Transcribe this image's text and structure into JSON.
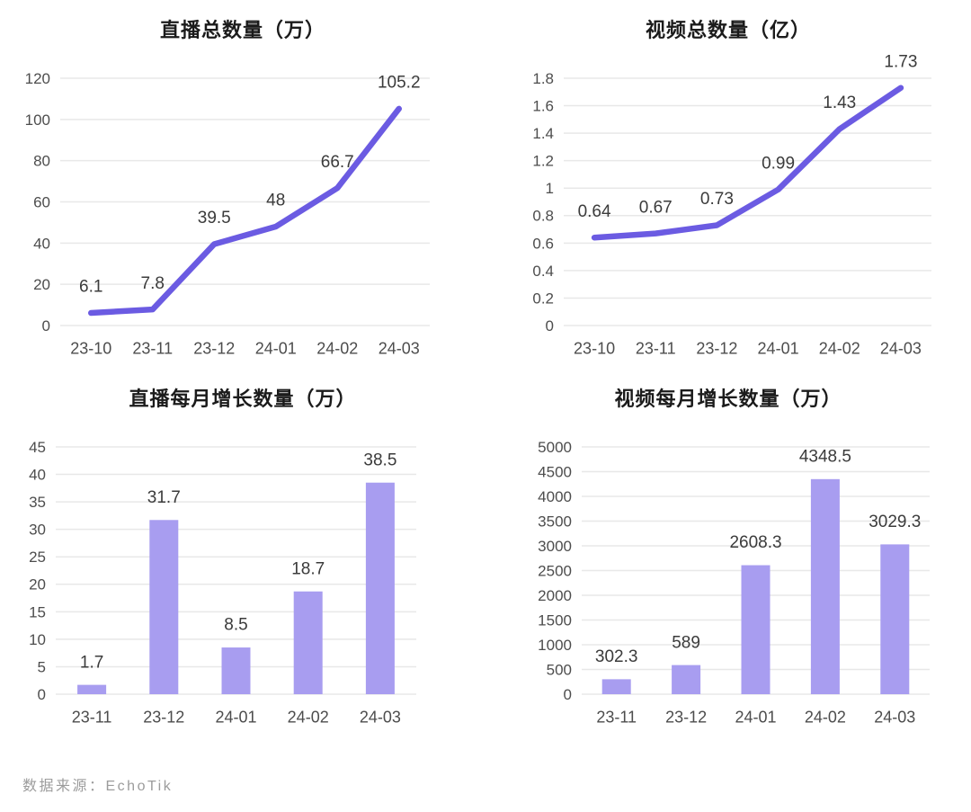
{
  "page": {
    "source_note": "数据来源：EchoTik"
  },
  "colors": {
    "line": "#6B5BE2",
    "bar": "#A89DF0",
    "grid": "#e8e8e8",
    "title_text": "#1b1b1b",
    "tick_text": "#4d4d4d",
    "data_label_text": "#3b3b3b",
    "source_text": "#9c9c9c",
    "background": "#ffffff"
  },
  "chart_data": [
    {
      "id": "live-total",
      "type": "line",
      "title": "直播总数量（万）",
      "categories": [
        "23-10",
        "23-11",
        "23-12",
        "24-01",
        "24-02",
        "24-03"
      ],
      "values": [
        6.1,
        7.8,
        39.5,
        48,
        66.7,
        105.2
      ],
      "ylim": [
        0,
        120
      ],
      "ystep": 20,
      "grid": true,
      "legend": "none",
      "xlabel": "",
      "ylabel": ""
    },
    {
      "id": "video-total",
      "type": "line",
      "title": "视频总数量（亿）",
      "categories": [
        "23-10",
        "23-11",
        "23-12",
        "24-01",
        "24-02",
        "24-03"
      ],
      "values": [
        0.64,
        0.67,
        0.73,
        0.99,
        1.43,
        1.73
      ],
      "ylim": [
        0,
        1.8
      ],
      "ystep": 0.2,
      "grid": true,
      "legend": "none",
      "xlabel": "",
      "ylabel": ""
    },
    {
      "id": "live-monthly-growth",
      "type": "bar",
      "title": "直播每月增长数量（万）",
      "categories": [
        "23-11",
        "23-12",
        "24-01",
        "24-02",
        "24-03"
      ],
      "values": [
        1.7,
        31.7,
        8.5,
        18.7,
        38.5
      ],
      "ylim": [
        0,
        45
      ],
      "ystep": 5,
      "grid": true,
      "legend": "none",
      "xlabel": "",
      "ylabel": ""
    },
    {
      "id": "video-monthly-growth",
      "type": "bar",
      "title": "视频每月增长数量（万）",
      "categories": [
        "23-11",
        "23-12",
        "24-01",
        "24-02",
        "24-03"
      ],
      "values": [
        302.3,
        589,
        2608.3,
        4348.5,
        3029.3
      ],
      "ylim": [
        0,
        5000
      ],
      "ystep": 500,
      "grid": true,
      "legend": "none",
      "xlabel": "",
      "ylabel": ""
    }
  ]
}
